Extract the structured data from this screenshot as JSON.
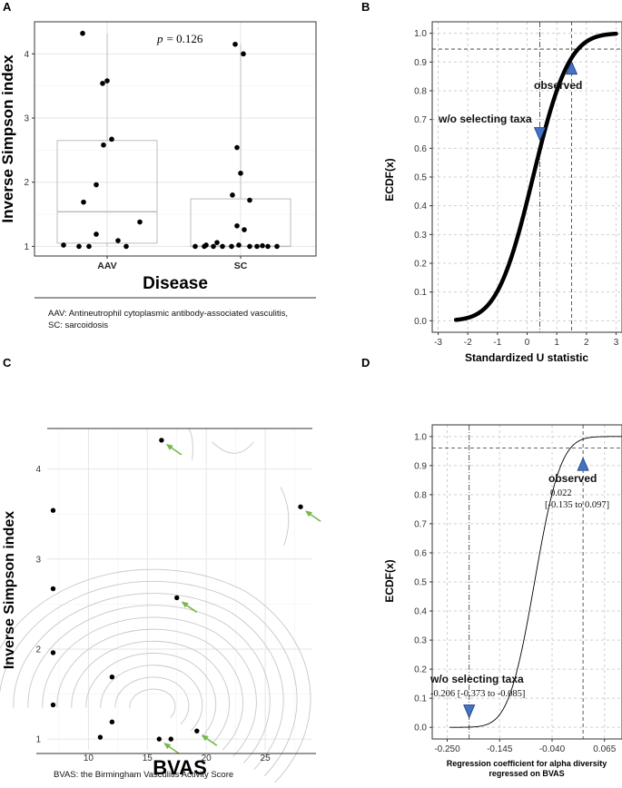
{
  "panels": {
    "A": {
      "label": "A",
      "caption_line1": "AAV: Antineutrophil cytoplasmic antibody-associated vasculitis,",
      "caption_line2": "SC: sarcoidosis",
      "p_prefix": "p",
      "p_value": "= 0.126"
    },
    "B": {
      "label": "B",
      "ann_observed": "observed",
      "ann_wo": "w/o selecting taxa"
    },
    "C": {
      "label": "C",
      "caption": "BVAS: the Birmingham Vasculitis Activity Score"
    },
    "D": {
      "label": "D",
      "ann_observed": "observed",
      "obs_value": "0.022",
      "obs_ci": "[-0.135 to 0.097]",
      "ann_wo": "w/o selecting taxa",
      "wo_value": "-0.206 [-0.373 to -0.085]"
    }
  },
  "colors": {
    "marker": "#4472c4",
    "marker_edge": "#1f3f7a",
    "arrow": "#77b84a",
    "contour": "#c8c8c8"
  },
  "chart_data": [
    {
      "panel": "A",
      "type": "boxplot",
      "xlabel": "Disease",
      "ylabel": "Inverse Simpson index",
      "categories": [
        "AAV",
        "SC"
      ],
      "ylim": [
        0.85,
        4.5
      ],
      "yticks": [
        1,
        2,
        3,
        4
      ],
      "boxes": [
        {
          "category": "AAV",
          "min": 1.0,
          "q1": 1.05,
          "median": 1.54,
          "q3": 2.65,
          "max": 4.32
        },
        {
          "category": "SC",
          "min": 1.0,
          "q1": 1.0,
          "median": 1.0,
          "q3": 1.74,
          "max": 4.15
        }
      ],
      "points": [
        {
          "category": "AAV",
          "values": [
            4.32,
            3.58,
            3.54,
            2.67,
            2.58,
            1.96,
            1.69,
            1.38,
            1.19,
            1.09,
            1.02,
            1.0,
            1.0,
            1.0
          ]
        },
        {
          "category": "SC",
          "values": [
            4.15,
            4.0,
            2.54,
            2.14,
            1.8,
            1.72,
            1.32,
            1.26,
            1.06,
            1.02,
            1.02,
            1.01,
            1.0,
            1.0,
            1.0,
            1.0,
            1.0,
            1.0,
            1.0,
            1.0,
            1.0
          ]
        }
      ]
    },
    {
      "panel": "B",
      "type": "line",
      "xlabel": "Standardized U statistic",
      "ylabel": "ECDF(x)",
      "xlim": [
        -3.2,
        3.2
      ],
      "ylim": [
        -0.04,
        1.04
      ],
      "xticks": [
        -3,
        -2,
        -1,
        0,
        1,
        2,
        3
      ],
      "yticks": [
        0.0,
        0.1,
        0.2,
        0.3,
        0.4,
        0.5,
        0.6,
        0.7,
        0.8,
        0.9,
        1.0
      ],
      "curve": {
        "distribution": "normal-cdf",
        "mean": 0.2,
        "sd": 0.95,
        "x_min": -2.4,
        "x_max": 3.0
      },
      "vlines": [
        {
          "x": 0.43,
          "style": "dotdash",
          "label": "w/o selecting taxa"
        },
        {
          "x": 1.5,
          "style": "dashed",
          "label": "observed"
        }
      ],
      "hlines": [
        {
          "y": 0.945,
          "style": "dashed"
        }
      ],
      "markers": [
        {
          "x": 1.5,
          "y": 0.88,
          "dir": "up",
          "label": "observed"
        },
        {
          "x": 0.43,
          "y": 0.65,
          "dir": "down",
          "label": "w/o selecting taxa"
        }
      ]
    },
    {
      "panel": "C",
      "type": "scatter",
      "xlabel": "BVAS",
      "ylabel": "Inverse Simpson index",
      "xlim": [
        6.5,
        29.0
      ],
      "ylim": [
        0.88,
        4.45
      ],
      "xticks": [
        10,
        15,
        20,
        25
      ],
      "yticks": [
        1,
        2,
        3,
        4
      ],
      "points": [
        {
          "x": 16.2,
          "y": 4.32,
          "arrow": true
        },
        {
          "x": 28.0,
          "y": 3.58,
          "arrow": true
        },
        {
          "x": 7.0,
          "y": 3.54,
          "arrow": false
        },
        {
          "x": 7.0,
          "y": 2.67,
          "arrow": false
        },
        {
          "x": 17.5,
          "y": 2.57,
          "arrow": true
        },
        {
          "x": 7.0,
          "y": 1.96,
          "arrow": false
        },
        {
          "x": 12.0,
          "y": 1.69,
          "arrow": false
        },
        {
          "x": 7.0,
          "y": 1.38,
          "arrow": false
        },
        {
          "x": 12.0,
          "y": 1.19,
          "arrow": false
        },
        {
          "x": 19.2,
          "y": 1.09,
          "arrow": true
        },
        {
          "x": 11.0,
          "y": 1.02,
          "arrow": false
        },
        {
          "x": 16.0,
          "y": 1.0,
          "arrow": true
        },
        {
          "x": 17.0,
          "y": 1.0,
          "arrow": false
        }
      ],
      "contours": "density"
    },
    {
      "panel": "D",
      "type": "line",
      "xlabel": "Regression coefficient for alpha diversity regressed on BVAS",
      "ylabel": "ECDF(x)",
      "xlim": [
        -0.28,
        0.1
      ],
      "ylim": [
        -0.04,
        1.04
      ],
      "xticks": [
        -0.25,
        -0.145,
        -0.04,
        0.065
      ],
      "xtick_labels": [
        "-0.250",
        "-0.145",
        "-0.040",
        "0.065"
      ],
      "yticks": [
        0.0,
        0.1,
        0.2,
        0.3,
        0.4,
        0.5,
        0.6,
        0.7,
        0.8,
        0.9,
        1.0
      ],
      "curve": {
        "distribution": "normal-cdf",
        "mean": -0.075,
        "sd": 0.041,
        "x_min": -0.245,
        "x_max": 0.1
      },
      "vlines": [
        {
          "x": -0.206,
          "style": "dotdash",
          "label": "w/o selecting taxa"
        },
        {
          "x": 0.022,
          "style": "dashed",
          "label": "observed"
        }
      ],
      "hlines": [
        {
          "y": 0.96,
          "style": "dashed"
        }
      ],
      "markers": [
        {
          "x": 0.022,
          "y": 0.905,
          "dir": "up",
          "label": "observed"
        },
        {
          "x": -0.206,
          "y": 0.055,
          "dir": "down",
          "label": "w/o selecting taxa"
        }
      ]
    }
  ]
}
